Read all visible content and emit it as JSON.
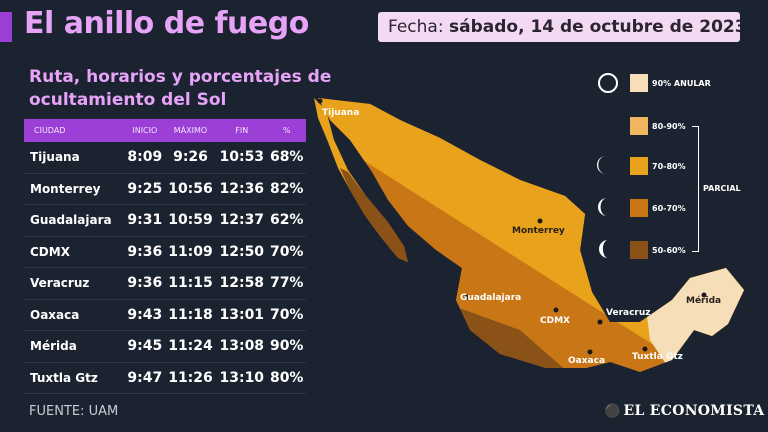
{
  "header": {
    "title": "El anillo de fuego",
    "date_prefix": "Fecha:",
    "date_value": "sábado, 14 de octubre de 2023"
  },
  "subtitle": "Ruta, horarios y porcentajes de ocultamiento del Sol",
  "table": {
    "columns": [
      "CIUDAD",
      "INICIO",
      "MÁXIMO",
      "FIN",
      "%"
    ],
    "rows": [
      {
        "city": "Tijuana",
        "start": "8:09",
        "max": "9:26",
        "end": "10:53",
        "pct": "68%"
      },
      {
        "city": "Monterrey",
        "start": "9:25",
        "max": "10:56",
        "end": "12:36",
        "pct": "82%"
      },
      {
        "city": "Guadalajara",
        "start": "9:31",
        "max": "10:59",
        "end": "12:37",
        "pct": "62%"
      },
      {
        "city": "CDMX",
        "start": "9:36",
        "max": "11:09",
        "end": "12:50",
        "pct": "70%"
      },
      {
        "city": "Veracruz",
        "start": "9:36",
        "max": "11:15",
        "end": "12:58",
        "pct": "77%"
      },
      {
        "city": "Oaxaca",
        "start": "9:43",
        "max": "11:18",
        "end": "13:01",
        "pct": "70%"
      },
      {
        "city": "Mérida",
        "start": "9:45",
        "max": "11:24",
        "end": "13:08",
        "pct": "90%"
      },
      {
        "city": "Tuxtla Gtz",
        "start": "9:47",
        "max": "11:26",
        "end": "13:10",
        "pct": "80%"
      }
    ]
  },
  "map": {
    "labels": {
      "tijuana": "Tijuana",
      "monterrey": "Monterrey",
      "guadalajara": "Guadalajara",
      "cdmx": "CDMX",
      "veracruz": "Veracruz",
      "oaxaca": "Oaxaca",
      "merida": "Mérida",
      "tuxtla": "Tuxtla Gtz"
    }
  },
  "legend": {
    "items": [
      {
        "label": "90% ANULAR",
        "color": "#f6deb8"
      },
      {
        "label": "80-90%",
        "color": "#f0b760"
      },
      {
        "label": "70-80%",
        "color": "#e8a21c"
      },
      {
        "label": "60-70%",
        "color": "#c97716"
      },
      {
        "label": "50-60%",
        "color": "#8a5217"
      }
    ],
    "group_label": "PARCIAL"
  },
  "footer": {
    "source": "FUENTE: UAM",
    "brand": "EL ECONOMISTA"
  }
}
